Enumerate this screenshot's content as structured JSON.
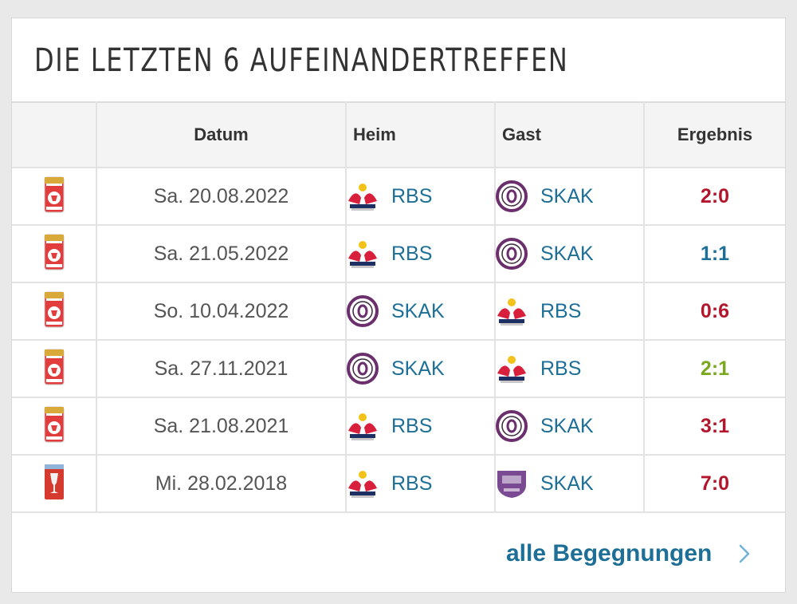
{
  "title": "DIE LETZTEN 6 AUFEINANDERTREFFEN",
  "columns": {
    "date": "Datum",
    "home": "Heim",
    "away": "Gast",
    "result": "Ergebnis"
  },
  "colors": {
    "team_link": "#1e6f97",
    "result_loss": "#b3162c",
    "result_draw": "#1e6f97",
    "result_win": "#7aa81e"
  },
  "matches": [
    {
      "competition_icon": "cup-trophy-icon",
      "date": "Sa. 20.08.2022",
      "home": "RBS",
      "home_icon": "red-bull-logo-icon",
      "away": "SKAK",
      "away_icon": "skak-crest-icon",
      "result": "2:0",
      "result_color": "#b3162c"
    },
    {
      "competition_icon": "cup-trophy-icon",
      "date": "Sa. 21.05.2022",
      "home": "RBS",
      "home_icon": "red-bull-logo-icon",
      "away": "SKAK",
      "away_icon": "skak-crest-icon",
      "result": "1:1",
      "result_color": "#1e6f97"
    },
    {
      "competition_icon": "cup-trophy-icon",
      "date": "So. 10.04.2022",
      "home": "SKAK",
      "home_icon": "skak-crest-icon",
      "away": "RBS",
      "away_icon": "red-bull-logo-icon",
      "result": "0:6",
      "result_color": "#b3162c"
    },
    {
      "competition_icon": "cup-trophy-icon",
      "date": "Sa. 27.11.2021",
      "home": "SKAK",
      "home_icon": "skak-crest-icon",
      "away": "RBS",
      "away_icon": "red-bull-logo-icon",
      "result": "2:1",
      "result_color": "#7aa81e"
    },
    {
      "competition_icon": "cup-trophy-icon",
      "date": "Sa. 21.08.2021",
      "home": "RBS",
      "home_icon": "red-bull-logo-icon",
      "away": "SKAK",
      "away_icon": "skak-crest-icon",
      "result": "3:1",
      "result_color": "#b3162c"
    },
    {
      "competition_icon": "oefb-cup-icon",
      "date": "Mi. 28.02.2018",
      "home": "RBS",
      "home_icon": "red-bull-logo-icon",
      "away": "SKAK",
      "away_icon": "skak-old-crest-icon",
      "result": "7:0",
      "result_color": "#b3162c"
    }
  ],
  "footer": {
    "link_label": "alle Begegnungen",
    "link_icon": "chevron-right-icon"
  }
}
